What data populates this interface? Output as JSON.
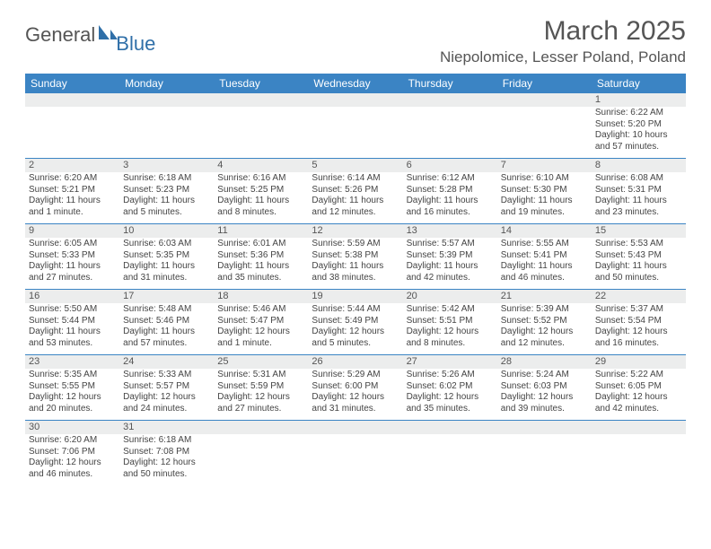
{
  "logo": {
    "text1": "General",
    "text2": "Blue"
  },
  "title": "March 2025",
  "location": "Niepolomice, Lesser Poland, Poland",
  "weekdays": [
    "Sunday",
    "Monday",
    "Tuesday",
    "Wednesday",
    "Thursday",
    "Friday",
    "Saturday"
  ],
  "colors": {
    "header_bg": "#3b84c4",
    "header_text": "#ffffff",
    "daynum_bg": "#eceded",
    "text": "#444444",
    "rule": "#3b84c4"
  },
  "weeks": [
    [
      null,
      null,
      null,
      null,
      null,
      null,
      {
        "n": "1",
        "sr": "Sunrise: 6:22 AM",
        "ss": "Sunset: 5:20 PM",
        "d1": "Daylight: 10 hours",
        "d2": "and 57 minutes."
      }
    ],
    [
      {
        "n": "2",
        "sr": "Sunrise: 6:20 AM",
        "ss": "Sunset: 5:21 PM",
        "d1": "Daylight: 11 hours",
        "d2": "and 1 minute."
      },
      {
        "n": "3",
        "sr": "Sunrise: 6:18 AM",
        "ss": "Sunset: 5:23 PM",
        "d1": "Daylight: 11 hours",
        "d2": "and 5 minutes."
      },
      {
        "n": "4",
        "sr": "Sunrise: 6:16 AM",
        "ss": "Sunset: 5:25 PM",
        "d1": "Daylight: 11 hours",
        "d2": "and 8 minutes."
      },
      {
        "n": "5",
        "sr": "Sunrise: 6:14 AM",
        "ss": "Sunset: 5:26 PM",
        "d1": "Daylight: 11 hours",
        "d2": "and 12 minutes."
      },
      {
        "n": "6",
        "sr": "Sunrise: 6:12 AM",
        "ss": "Sunset: 5:28 PM",
        "d1": "Daylight: 11 hours",
        "d2": "and 16 minutes."
      },
      {
        "n": "7",
        "sr": "Sunrise: 6:10 AM",
        "ss": "Sunset: 5:30 PM",
        "d1": "Daylight: 11 hours",
        "d2": "and 19 minutes."
      },
      {
        "n": "8",
        "sr": "Sunrise: 6:08 AM",
        "ss": "Sunset: 5:31 PM",
        "d1": "Daylight: 11 hours",
        "d2": "and 23 minutes."
      }
    ],
    [
      {
        "n": "9",
        "sr": "Sunrise: 6:05 AM",
        "ss": "Sunset: 5:33 PM",
        "d1": "Daylight: 11 hours",
        "d2": "and 27 minutes."
      },
      {
        "n": "10",
        "sr": "Sunrise: 6:03 AM",
        "ss": "Sunset: 5:35 PM",
        "d1": "Daylight: 11 hours",
        "d2": "and 31 minutes."
      },
      {
        "n": "11",
        "sr": "Sunrise: 6:01 AM",
        "ss": "Sunset: 5:36 PM",
        "d1": "Daylight: 11 hours",
        "d2": "and 35 minutes."
      },
      {
        "n": "12",
        "sr": "Sunrise: 5:59 AM",
        "ss": "Sunset: 5:38 PM",
        "d1": "Daylight: 11 hours",
        "d2": "and 38 minutes."
      },
      {
        "n": "13",
        "sr": "Sunrise: 5:57 AM",
        "ss": "Sunset: 5:39 PM",
        "d1": "Daylight: 11 hours",
        "d2": "and 42 minutes."
      },
      {
        "n": "14",
        "sr": "Sunrise: 5:55 AM",
        "ss": "Sunset: 5:41 PM",
        "d1": "Daylight: 11 hours",
        "d2": "and 46 minutes."
      },
      {
        "n": "15",
        "sr": "Sunrise: 5:53 AM",
        "ss": "Sunset: 5:43 PM",
        "d1": "Daylight: 11 hours",
        "d2": "and 50 minutes."
      }
    ],
    [
      {
        "n": "16",
        "sr": "Sunrise: 5:50 AM",
        "ss": "Sunset: 5:44 PM",
        "d1": "Daylight: 11 hours",
        "d2": "and 53 minutes."
      },
      {
        "n": "17",
        "sr": "Sunrise: 5:48 AM",
        "ss": "Sunset: 5:46 PM",
        "d1": "Daylight: 11 hours",
        "d2": "and 57 minutes."
      },
      {
        "n": "18",
        "sr": "Sunrise: 5:46 AM",
        "ss": "Sunset: 5:47 PM",
        "d1": "Daylight: 12 hours",
        "d2": "and 1 minute."
      },
      {
        "n": "19",
        "sr": "Sunrise: 5:44 AM",
        "ss": "Sunset: 5:49 PM",
        "d1": "Daylight: 12 hours",
        "d2": "and 5 minutes."
      },
      {
        "n": "20",
        "sr": "Sunrise: 5:42 AM",
        "ss": "Sunset: 5:51 PM",
        "d1": "Daylight: 12 hours",
        "d2": "and 8 minutes."
      },
      {
        "n": "21",
        "sr": "Sunrise: 5:39 AM",
        "ss": "Sunset: 5:52 PM",
        "d1": "Daylight: 12 hours",
        "d2": "and 12 minutes."
      },
      {
        "n": "22",
        "sr": "Sunrise: 5:37 AM",
        "ss": "Sunset: 5:54 PM",
        "d1": "Daylight: 12 hours",
        "d2": "and 16 minutes."
      }
    ],
    [
      {
        "n": "23",
        "sr": "Sunrise: 5:35 AM",
        "ss": "Sunset: 5:55 PM",
        "d1": "Daylight: 12 hours",
        "d2": "and 20 minutes."
      },
      {
        "n": "24",
        "sr": "Sunrise: 5:33 AM",
        "ss": "Sunset: 5:57 PM",
        "d1": "Daylight: 12 hours",
        "d2": "and 24 minutes."
      },
      {
        "n": "25",
        "sr": "Sunrise: 5:31 AM",
        "ss": "Sunset: 5:59 PM",
        "d1": "Daylight: 12 hours",
        "d2": "and 27 minutes."
      },
      {
        "n": "26",
        "sr": "Sunrise: 5:29 AM",
        "ss": "Sunset: 6:00 PM",
        "d1": "Daylight: 12 hours",
        "d2": "and 31 minutes."
      },
      {
        "n": "27",
        "sr": "Sunrise: 5:26 AM",
        "ss": "Sunset: 6:02 PM",
        "d1": "Daylight: 12 hours",
        "d2": "and 35 minutes."
      },
      {
        "n": "28",
        "sr": "Sunrise: 5:24 AM",
        "ss": "Sunset: 6:03 PM",
        "d1": "Daylight: 12 hours",
        "d2": "and 39 minutes."
      },
      {
        "n": "29",
        "sr": "Sunrise: 5:22 AM",
        "ss": "Sunset: 6:05 PM",
        "d1": "Daylight: 12 hours",
        "d2": "and 42 minutes."
      }
    ],
    [
      {
        "n": "30",
        "sr": "Sunrise: 6:20 AM",
        "ss": "Sunset: 7:06 PM",
        "d1": "Daylight: 12 hours",
        "d2": "and 46 minutes."
      },
      {
        "n": "31",
        "sr": "Sunrise: 6:18 AM",
        "ss": "Sunset: 7:08 PM",
        "d1": "Daylight: 12 hours",
        "d2": "and 50 minutes."
      },
      null,
      null,
      null,
      null,
      null
    ]
  ]
}
